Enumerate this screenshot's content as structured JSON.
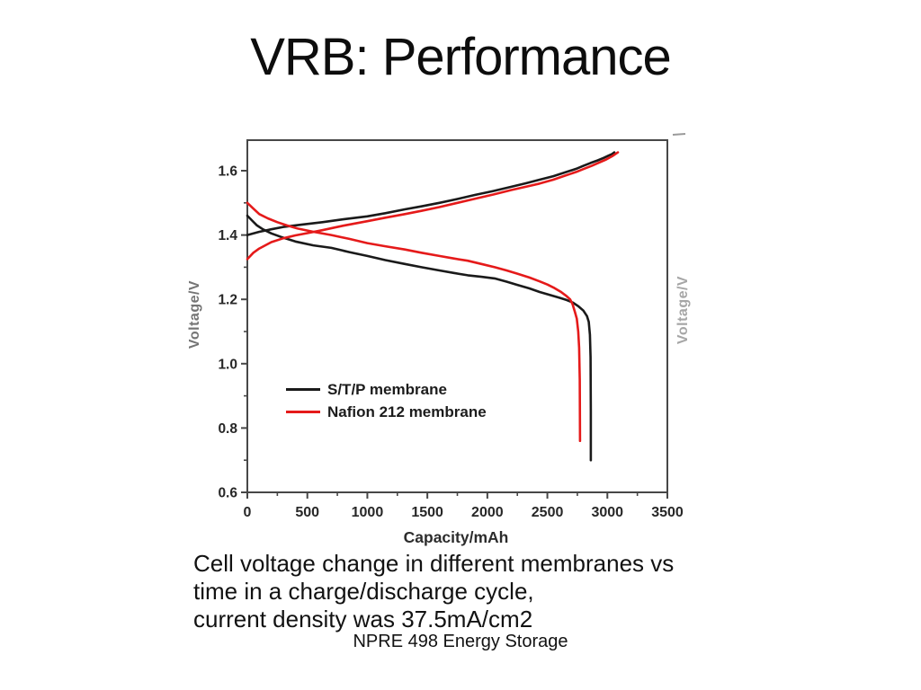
{
  "slide": {
    "title": "VRB: Performance",
    "caption_lines": [
      "Cell voltage change in different membranes vs",
      "time in a charge/discharge cycle,",
      "current density was 37.5mA/cm2"
    ],
    "footer": "NPRE 498 Energy Storage"
  },
  "colors": {
    "curve_black": "#1a1a1a",
    "curve_red": "#e51a1a",
    "axis": "#474747",
    "tick_text": "#272727",
    "title_text": "#0d0d0d"
  },
  "chart_data": {
    "type": "line",
    "title": "",
    "xlabel": "Capacity/mAh",
    "ylabel": "Voltage/V",
    "ylabel_right": "Voltage/V",
    "xlim": [
      0,
      3500
    ],
    "ylim": [
      0.6,
      1.7
    ],
    "grid": false,
    "x_major_ticks": [
      0,
      500,
      1000,
      1500,
      2000,
      2500,
      3000,
      3500
    ],
    "x_minor_ticks": [
      250,
      750,
      1250,
      1750,
      2250,
      2750,
      3250
    ],
    "y_major_ticks": [
      0.6,
      0.8,
      1.0,
      1.2,
      1.4,
      1.6
    ],
    "y_tick_labels": [
      "0.6",
      "0.8",
      "1.0",
      "1.2",
      "1.4",
      "1.6"
    ],
    "y_minor_ticks": [
      0.7,
      0.9,
      1.1,
      1.3,
      1.5,
      1.7
    ],
    "legend": {
      "position": "inside-left-middle",
      "entries": [
        {
          "label": "S/T/P membrane",
          "color": "#1a1a1a"
        },
        {
          "label": "Nafion 212 membrane",
          "color": "#e51a1a"
        }
      ]
    },
    "series": [
      {
        "name": "S/T/P membrane - charge",
        "color": "#1a1a1a",
        "points": [
          [
            0,
            1.4
          ],
          [
            100,
            1.41
          ],
          [
            200,
            1.418
          ],
          [
            300,
            1.425
          ],
          [
            450,
            1.432
          ],
          [
            625,
            1.44
          ],
          [
            800,
            1.449
          ],
          [
            1000,
            1.458
          ],
          [
            1150,
            1.468
          ],
          [
            1312,
            1.48
          ],
          [
            1450,
            1.489
          ],
          [
            1600,
            1.5
          ],
          [
            1750,
            1.512
          ],
          [
            1900,
            1.525
          ],
          [
            2050,
            1.537
          ],
          [
            2200,
            1.55
          ],
          [
            2320,
            1.561
          ],
          [
            2436,
            1.572
          ],
          [
            2550,
            1.583
          ],
          [
            2650,
            1.595
          ],
          [
            2740,
            1.606
          ],
          [
            2800,
            1.615
          ],
          [
            2860,
            1.624
          ],
          [
            2920,
            1.632
          ],
          [
            2970,
            1.64
          ],
          [
            3010,
            1.647
          ],
          [
            3040,
            1.652
          ],
          [
            3058,
            1.657
          ]
        ]
      },
      {
        "name": "S/T/P membrane - discharge",
        "color": "#1a1a1a",
        "points": [
          [
            0,
            1.46
          ],
          [
            40,
            1.445
          ],
          [
            80,
            1.43
          ],
          [
            130,
            1.418
          ],
          [
            200,
            1.405
          ],
          [
            280,
            1.394
          ],
          [
            400,
            1.38
          ],
          [
            550,
            1.368
          ],
          [
            700,
            1.36
          ],
          [
            850,
            1.347
          ],
          [
            1000,
            1.335
          ],
          [
            1150,
            1.322
          ],
          [
            1312,
            1.31
          ],
          [
            1450,
            1.3
          ],
          [
            1600,
            1.29
          ],
          [
            1720,
            1.282
          ],
          [
            1836,
            1.275
          ],
          [
            1950,
            1.27
          ],
          [
            2061,
            1.265
          ],
          [
            2160,
            1.255
          ],
          [
            2250,
            1.245
          ],
          [
            2350,
            1.234
          ],
          [
            2436,
            1.223
          ],
          [
            2520,
            1.214
          ],
          [
            2600,
            1.205
          ],
          [
            2660,
            1.198
          ],
          [
            2713,
            1.19
          ],
          [
            2760,
            1.178
          ],
          [
            2800,
            1.165
          ],
          [
            2830,
            1.148
          ],
          [
            2845,
            1.13
          ],
          [
            2855,
            1.09
          ],
          [
            2860,
            1.02
          ],
          [
            2862,
            0.85
          ],
          [
            2862,
            0.7
          ]
        ]
      },
      {
        "name": "Nafion 212 membrane - charge",
        "color": "#e51a1a",
        "points": [
          [
            0,
            1.325
          ],
          [
            50,
            1.345
          ],
          [
            100,
            1.358
          ],
          [
            200,
            1.378
          ],
          [
            300,
            1.39
          ],
          [
            400,
            1.399
          ],
          [
            500,
            1.406
          ],
          [
            625,
            1.415
          ],
          [
            800,
            1.429
          ],
          [
            1000,
            1.443
          ],
          [
            1150,
            1.454
          ],
          [
            1312,
            1.465
          ],
          [
            1450,
            1.475
          ],
          [
            1600,
            1.487
          ],
          [
            1750,
            1.5
          ],
          [
            1900,
            1.513
          ],
          [
            2050,
            1.526
          ],
          [
            2200,
            1.54
          ],
          [
            2320,
            1.55
          ],
          [
            2436,
            1.56
          ],
          [
            2550,
            1.572
          ],
          [
            2650,
            1.585
          ],
          [
            2740,
            1.596
          ],
          [
            2800,
            1.605
          ],
          [
            2870,
            1.615
          ],
          [
            2930,
            1.625
          ],
          [
            2990,
            1.635
          ],
          [
            3040,
            1.645
          ],
          [
            3088,
            1.657
          ]
        ]
      },
      {
        "name": "Nafion 212 membrane - discharge",
        "color": "#e51a1a",
        "points": [
          [
            0,
            1.5
          ],
          [
            50,
            1.482
          ],
          [
            100,
            1.465
          ],
          [
            170,
            1.452
          ],
          [
            250,
            1.44
          ],
          [
            330,
            1.43
          ],
          [
            420,
            1.42
          ],
          [
            550,
            1.41
          ],
          [
            700,
            1.4
          ],
          [
            850,
            1.388
          ],
          [
            1000,
            1.375
          ],
          [
            1150,
            1.365
          ],
          [
            1312,
            1.355
          ],
          [
            1450,
            1.345
          ],
          [
            1600,
            1.335
          ],
          [
            1720,
            1.327
          ],
          [
            1836,
            1.32
          ],
          [
            1950,
            1.31
          ],
          [
            2061,
            1.3
          ],
          [
            2160,
            1.29
          ],
          [
            2250,
            1.28
          ],
          [
            2350,
            1.268
          ],
          [
            2436,
            1.256
          ],
          [
            2500,
            1.246
          ],
          [
            2560,
            1.235
          ],
          [
            2610,
            1.224
          ],
          [
            2660,
            1.21
          ],
          [
            2690,
            1.2
          ],
          [
            2710,
            1.185
          ],
          [
            2730,
            1.16
          ],
          [
            2745,
            1.14
          ],
          [
            2757,
            1.1
          ],
          [
            2765,
            1.05
          ],
          [
            2770,
            0.95
          ],
          [
            2772,
            0.76
          ]
        ]
      }
    ]
  }
}
